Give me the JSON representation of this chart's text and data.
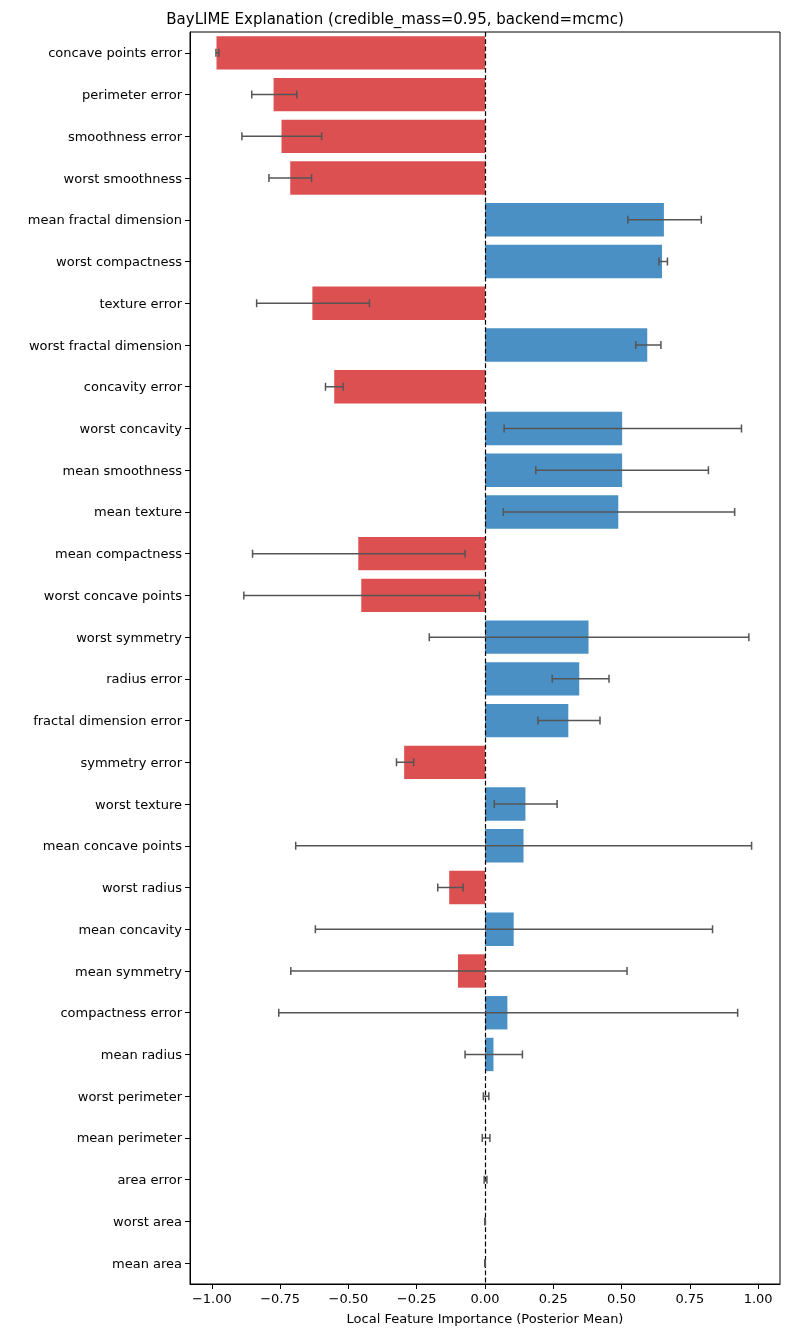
{
  "chart_data": {
    "type": "bar",
    "orientation": "horizontal",
    "title": "BayLIME Explanation (credible_mass=0.95, backend=mcmc)",
    "xlabel": "Local Feature Importance (Posterior Mean)",
    "categories": [
      "concave points error",
      "perimeter error",
      "smoothness error",
      "worst smoothness",
      "mean fractal dimension",
      "worst compactness",
      "texture error",
      "worst fractal dimension",
      "concavity error",
      "worst concavity",
      "mean smoothness",
      "mean texture",
      "mean compactness",
      "worst concave points",
      "worst symmetry",
      "radius error",
      "fractal dimension error",
      "symmetry error",
      "worst texture",
      "mean concave points",
      "worst radius",
      "mean concavity",
      "mean symmetry",
      "compactness error",
      "mean radius",
      "worst perimeter",
      "mean perimeter",
      "area error",
      "worst area",
      "mean area"
    ],
    "values": [
      -0.983,
      -0.774,
      -0.745,
      -0.713,
      0.655,
      0.648,
      -0.632,
      0.594,
      -0.552,
      0.502,
      0.502,
      0.488,
      -0.464,
      -0.453,
      0.379,
      0.345,
      0.305,
      -0.296,
      0.148,
      0.141,
      -0.131,
      0.105,
      -0.099,
      0.082,
      0.031,
      0,
      0,
      0,
      0,
      0
    ],
    "errors": [
      [
        -0.985,
        -0.974
      ],
      [
        -0.854,
        -0.689
      ],
      [
        -0.89,
        -0.598
      ],
      [
        -0.791,
        -0.635
      ],
      [
        0.523,
        0.792
      ],
      [
        0.637,
        0.668
      ],
      [
        -0.836,
        -0.423
      ],
      [
        0.552,
        0.644
      ],
      [
        -0.584,
        -0.519
      ],
      [
        0.07,
        0.939
      ],
      [
        0.186,
        0.818
      ],
      [
        0.067,
        0.914
      ],
      [
        -0.851,
        -0.073
      ],
      [
        -0.883,
        -0.02
      ],
      [
        -0.204,
        0.966
      ],
      [
        0.246,
        0.454
      ],
      [
        0.194,
        0.421
      ],
      [
        -0.324,
        -0.261
      ],
      [
        0.034,
        0.264
      ],
      [
        -0.693,
        0.976
      ],
      [
        -0.173,
        -0.08
      ],
      [
        -0.621,
        0.833
      ],
      [
        -0.711,
        0.52
      ],
      [
        -0.755,
        0.925
      ],
      [
        -0.073,
        0.137
      ],
      [
        -0.006,
        0.014
      ],
      [
        -0.01,
        0.018
      ],
      [
        -0.003,
        0.007
      ],
      [
        -0.001,
        0.001
      ],
      [
        -0.001,
        0.001
      ]
    ],
    "colors": [
      "#dd5052",
      "#dd5052",
      "#dd5052",
      "#dd5052",
      "#4a90c4",
      "#4a90c4",
      "#dd5052",
      "#4a90c4",
      "#dd5052",
      "#4a90c4",
      "#4a90c4",
      "#4a90c4",
      "#dd5052",
      "#dd5052",
      "#4a90c4",
      "#4a90c4",
      "#4a90c4",
      "#dd5052",
      "#4a90c4",
      "#4a90c4",
      "#dd5052",
      "#4a90c4",
      "#dd5052",
      "#4a90c4",
      "#4a90c4",
      "#4a90c4",
      "#4a90c4",
      "#4a90c4",
      "#4a90c4",
      "#4a90c4"
    ],
    "xlim": [
      -1.08,
      1.08
    ],
    "xticks": [
      {
        "value": -1,
        "label": "−1.00"
      },
      {
        "value": -0.75,
        "label": "−0.75"
      },
      {
        "value": -0.5,
        "label": "−0.50"
      },
      {
        "value": -0.25,
        "label": "−0.25"
      },
      {
        "value": 0,
        "label": "0.00"
      },
      {
        "value": 0.25,
        "label": "0.25"
      },
      {
        "value": 0.5,
        "label": "0.50"
      },
      {
        "value": 0.75,
        "label": "0.75"
      },
      {
        "value": 1,
        "label": "1.00"
      }
    ],
    "ref_lines": [
      {
        "axis": "x",
        "value": 0,
        "color": "#000000",
        "line_style": "dashed"
      }
    ],
    "grid": false
  }
}
